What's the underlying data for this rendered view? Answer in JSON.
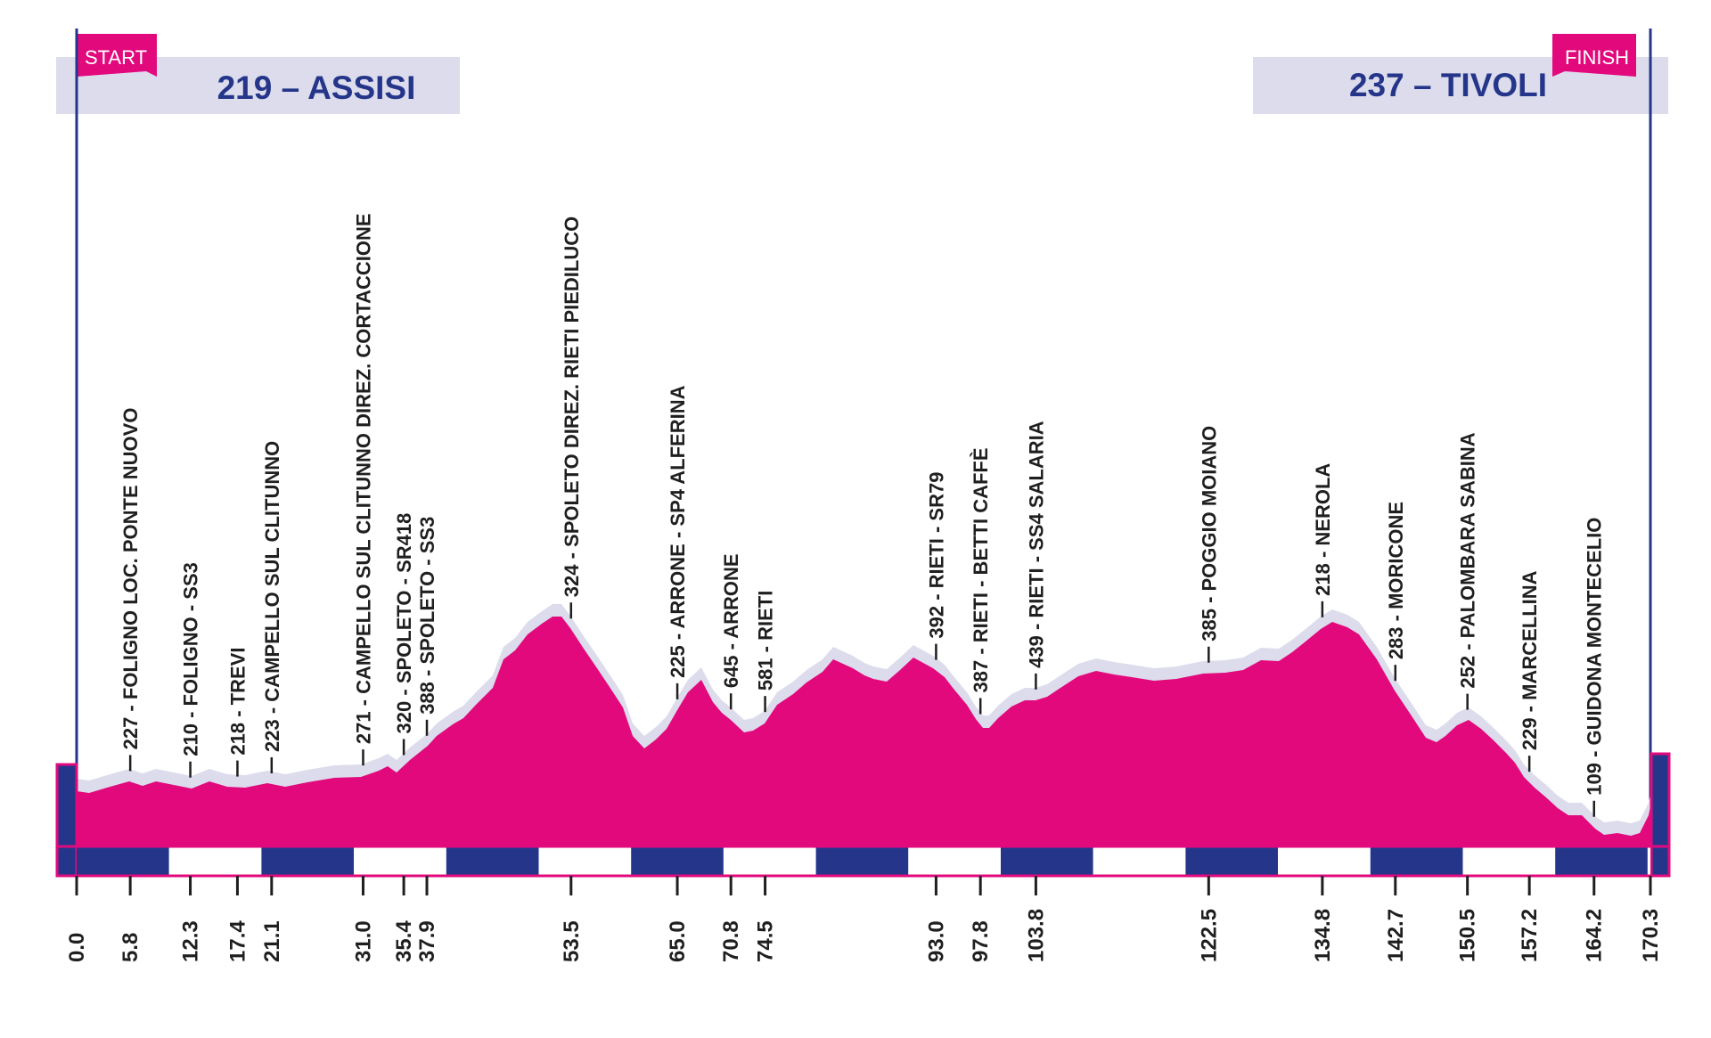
{
  "start": {
    "flag": "START",
    "elevation": "219",
    "name": "ASSISI",
    "title": "219 – ASSISI"
  },
  "finish": {
    "flag": "FINISH",
    "elevation": "237",
    "name": "TIVOLI",
    "title": "237 – TIVOLI"
  },
  "total_km": 170.3,
  "colors": {
    "profile": "#e2097d",
    "shadow": "#dcdcec",
    "navy": "#25368a",
    "title_box": "#dcdcec",
    "frame": "#e2097d"
  },
  "waypoints": [
    {
      "km": 5.8,
      "km_label": "5.8",
      "label": "227 - FOLIGNO LOC. PONTE NUOVO"
    },
    {
      "km": 12.3,
      "km_label": "12.3",
      "label": "210 - FOLIGNO - SS3"
    },
    {
      "km": 17.4,
      "km_label": "17.4",
      "label": "218 - TREVI"
    },
    {
      "km": 21.1,
      "km_label": "21.1",
      "label": "223 - CAMPELLO SUL CLITUNNO"
    },
    {
      "km": 31.0,
      "km_label": "31.0",
      "label": "271 - CAMPELLO SUL CLITUNNO DIREZ. CORTACCIONE"
    },
    {
      "km": 35.4,
      "km_label": "35.4",
      "label": "320 - SPOLETO - SR418"
    },
    {
      "km": 37.9,
      "km_label": "37.9",
      "label": "388 - SPOLETO - SS3"
    },
    {
      "km": 53.5,
      "km_label": "53.5",
      "label": "324 - SPOLETO DIREZ. RIETI PIEDILUCO"
    },
    {
      "km": 65.0,
      "km_label": "65.0",
      "label": "225 - ARRONE - SP4 ALFERINA"
    },
    {
      "km": 70.8,
      "km_label": "70.8",
      "label": "645 - ARRONE"
    },
    {
      "km": 74.5,
      "km_label": "74.5",
      "label": "581 - RIETI"
    },
    {
      "km": 93.0,
      "km_label": "93.0",
      "label": "392 - RIETI - SR79"
    },
    {
      "km": 97.8,
      "km_label": "97.8",
      "label": "387 - RIETI - BETTI CAFFÈ"
    },
    {
      "km": 103.8,
      "km_label": "103.8",
      "label": "439 - RIETI - SS4 SALARIA"
    },
    {
      "km": 122.5,
      "km_label": "122.5",
      "label": "385 - POGGIO MOIANO"
    },
    {
      "km": 134.8,
      "km_label": "134.8",
      "label": "218 - NEROLA"
    },
    {
      "km": 142.7,
      "km_label": "142.7",
      "label": "283 - MORICONE"
    },
    {
      "km": 150.5,
      "km_label": "150.5",
      "label": "252 - PALOMBARA SABINA"
    },
    {
      "km": 157.2,
      "km_label": "157.2",
      "label": "229 - MARCELLINA"
    },
    {
      "km": 164.2,
      "km_label": "164.2",
      "label": "109 - GUIDONA MONTECELIO"
    }
  ],
  "km_start_label": "0.0",
  "km_end_label": "170.3"
}
